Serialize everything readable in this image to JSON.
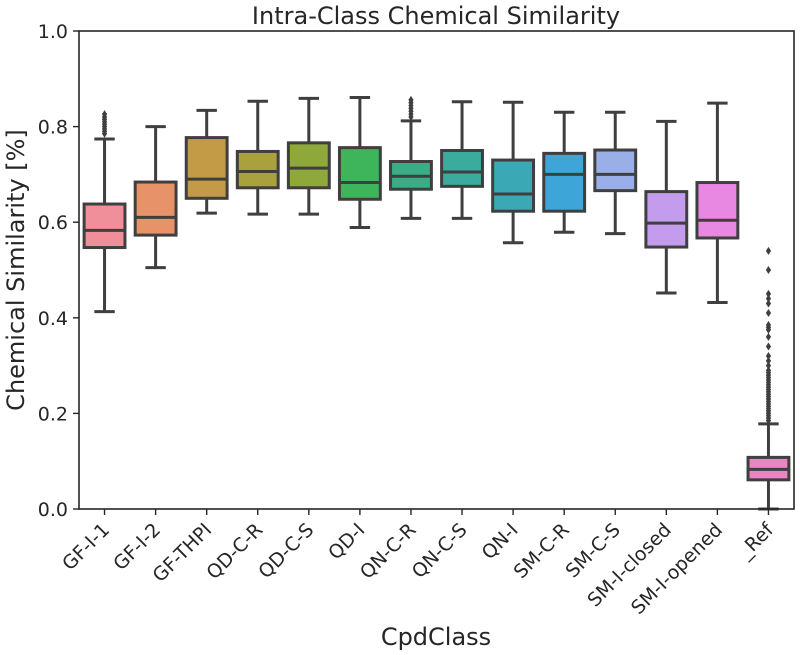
{
  "chart_data": {
    "type": "box",
    "title": "Intra-Class Chemical Similarity",
    "xlabel": "CpdClass",
    "ylabel": "Chemical Similarity [%]",
    "ylim": [
      0,
      1.0
    ],
    "yticks": [
      "0.0",
      "0.2",
      "0.4",
      "0.6",
      "0.8",
      "1.0"
    ],
    "grid": false,
    "categories": [
      "GF-I-1",
      "GF-I-2",
      "GF-THPI",
      "QD-C-R",
      "QD-C-S",
      "QD-I",
      "QN-C-R",
      "QN-C-S",
      "QN-I",
      "SM-C-R",
      "SM-C-S",
      "SM-I-closed",
      "SM-I-opened",
      "_Ref"
    ],
    "boxes": [
      {
        "whislo": 0.413,
        "q1": 0.547,
        "med": 0.583,
        "q3": 0.638,
        "whishi": 0.774,
        "fliers": [
          0.785,
          0.79,
          0.795,
          0.8,
          0.805,
          0.81,
          0.815,
          0.82,
          0.826
        ],
        "color": "#f08f9a"
      },
      {
        "whislo": 0.505,
        "q1": 0.573,
        "med": 0.61,
        "q3": 0.684,
        "whishi": 0.8,
        "fliers": [],
        "color": "#e8926a"
      },
      {
        "whislo": 0.619,
        "q1": 0.65,
        "med": 0.69,
        "q3": 0.777,
        "whishi": 0.834,
        "fliers": [],
        "color": "#c39a46"
      },
      {
        "whislo": 0.617,
        "q1": 0.672,
        "med": 0.706,
        "q3": 0.748,
        "whishi": 0.853,
        "fliers": [],
        "color": "#a9a03e"
      },
      {
        "whislo": 0.617,
        "q1": 0.672,
        "med": 0.713,
        "q3": 0.766,
        "whishi": 0.859,
        "fliers": [],
        "color": "#8ea93a"
      },
      {
        "whislo": 0.589,
        "q1": 0.648,
        "med": 0.683,
        "q3": 0.756,
        "whishi": 0.861,
        "fliers": [],
        "color": "#3eb55a"
      },
      {
        "whislo": 0.608,
        "q1": 0.669,
        "med": 0.696,
        "q3": 0.727,
        "whishi": 0.812,
        "fliers": [
          0.82,
          0.826,
          0.832,
          0.838,
          0.844,
          0.85,
          0.856
        ],
        "color": "#3aad86"
      },
      {
        "whislo": 0.608,
        "q1": 0.675,
        "med": 0.705,
        "q3": 0.75,
        "whishi": 0.852,
        "fliers": [],
        "color": "#3aab9d"
      },
      {
        "whislo": 0.557,
        "q1": 0.623,
        "med": 0.659,
        "q3": 0.73,
        "whishi": 0.851,
        "fliers": [],
        "color": "#3aa9b5"
      },
      {
        "whislo": 0.579,
        "q1": 0.623,
        "med": 0.7,
        "q3": 0.744,
        "whishi": 0.83,
        "fliers": [],
        "color": "#3ea5d8"
      },
      {
        "whislo": 0.576,
        "q1": 0.666,
        "med": 0.7,
        "q3": 0.751,
        "whishi": 0.83,
        "fliers": [],
        "color": "#9aaee8"
      },
      {
        "whislo": 0.452,
        "q1": 0.548,
        "med": 0.598,
        "q3": 0.664,
        "whishi": 0.811,
        "fliers": [],
        "color": "#c39ced"
      },
      {
        "whislo": 0.432,
        "q1": 0.567,
        "med": 0.604,
        "q3": 0.683,
        "whishi": 0.849,
        "fliers": [],
        "color": "#e888e2"
      },
      {
        "whislo": 0.0,
        "q1": 0.061,
        "med": 0.083,
        "q3": 0.108,
        "whishi": 0.178,
        "fliers": [
          0.185,
          0.19,
          0.195,
          0.2,
          0.205,
          0.21,
          0.215,
          0.22,
          0.225,
          0.23,
          0.235,
          0.24,
          0.245,
          0.25,
          0.255,
          0.26,
          0.265,
          0.27,
          0.275,
          0.28,
          0.285,
          0.29,
          0.3,
          0.31,
          0.32,
          0.34,
          0.36,
          0.375,
          0.38,
          0.385,
          0.41,
          0.43,
          0.44,
          0.45,
          0.5,
          0.54
        ],
        "color": "#ec84c3"
      }
    ]
  }
}
